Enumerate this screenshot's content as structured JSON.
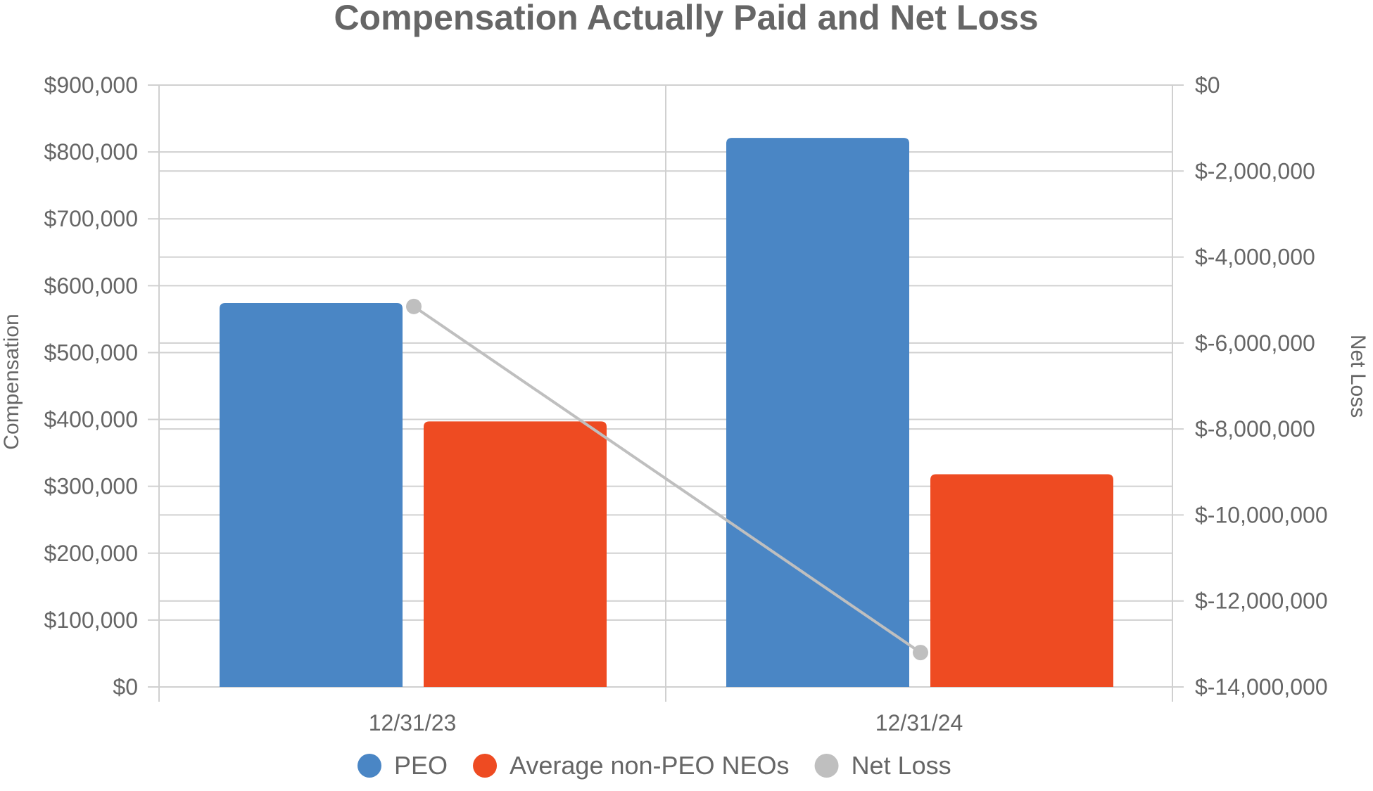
{
  "chart_data": {
    "type": "bar",
    "title": "Compensation Actually Paid and Net Loss",
    "categories": [
      "12/31/23",
      "12/31/24"
    ],
    "ylabel": "Compensation",
    "y2label": "Net Loss",
    "ylim": [
      0,
      900000
    ],
    "y2lim": [
      -14000000,
      0
    ],
    "y_ticks": [
      0,
      100000,
      200000,
      300000,
      400000,
      500000,
      600000,
      700000,
      800000,
      900000
    ],
    "y_tick_labels": [
      "$0",
      "$100,000",
      "$200,000",
      "$300,000",
      "$400,000",
      "$500,000",
      "$600,000",
      "$700,000",
      "$800,000",
      "$900,000"
    ],
    "y2_ticks": [
      0,
      -2000000,
      -4000000,
      -6000000,
      -8000000,
      -10000000,
      -12000000,
      -14000000
    ],
    "y2_tick_labels": [
      "$0",
      "$-2,000,000",
      "$-4,000,000",
      "$-6,000,000",
      "$-8,000,000",
      "$-10,000,000",
      "$-12,000,000",
      "$-14,000,000"
    ],
    "series": [
      {
        "name": "PEO",
        "type": "bar",
        "axis": "left",
        "color": "#4A86C5",
        "values": [
          574000,
          821000
        ]
      },
      {
        "name": "Average non-PEO NEOs",
        "type": "bar",
        "axis": "left",
        "color": "#EE4B22",
        "values": [
          397000,
          318000
        ]
      },
      {
        "name": "Net Loss",
        "type": "line",
        "axis": "right",
        "color": "#BFBFBF",
        "values": [
          -5150000,
          -13200000
        ]
      }
    ],
    "grid": true,
    "legend_position": "bottom"
  }
}
